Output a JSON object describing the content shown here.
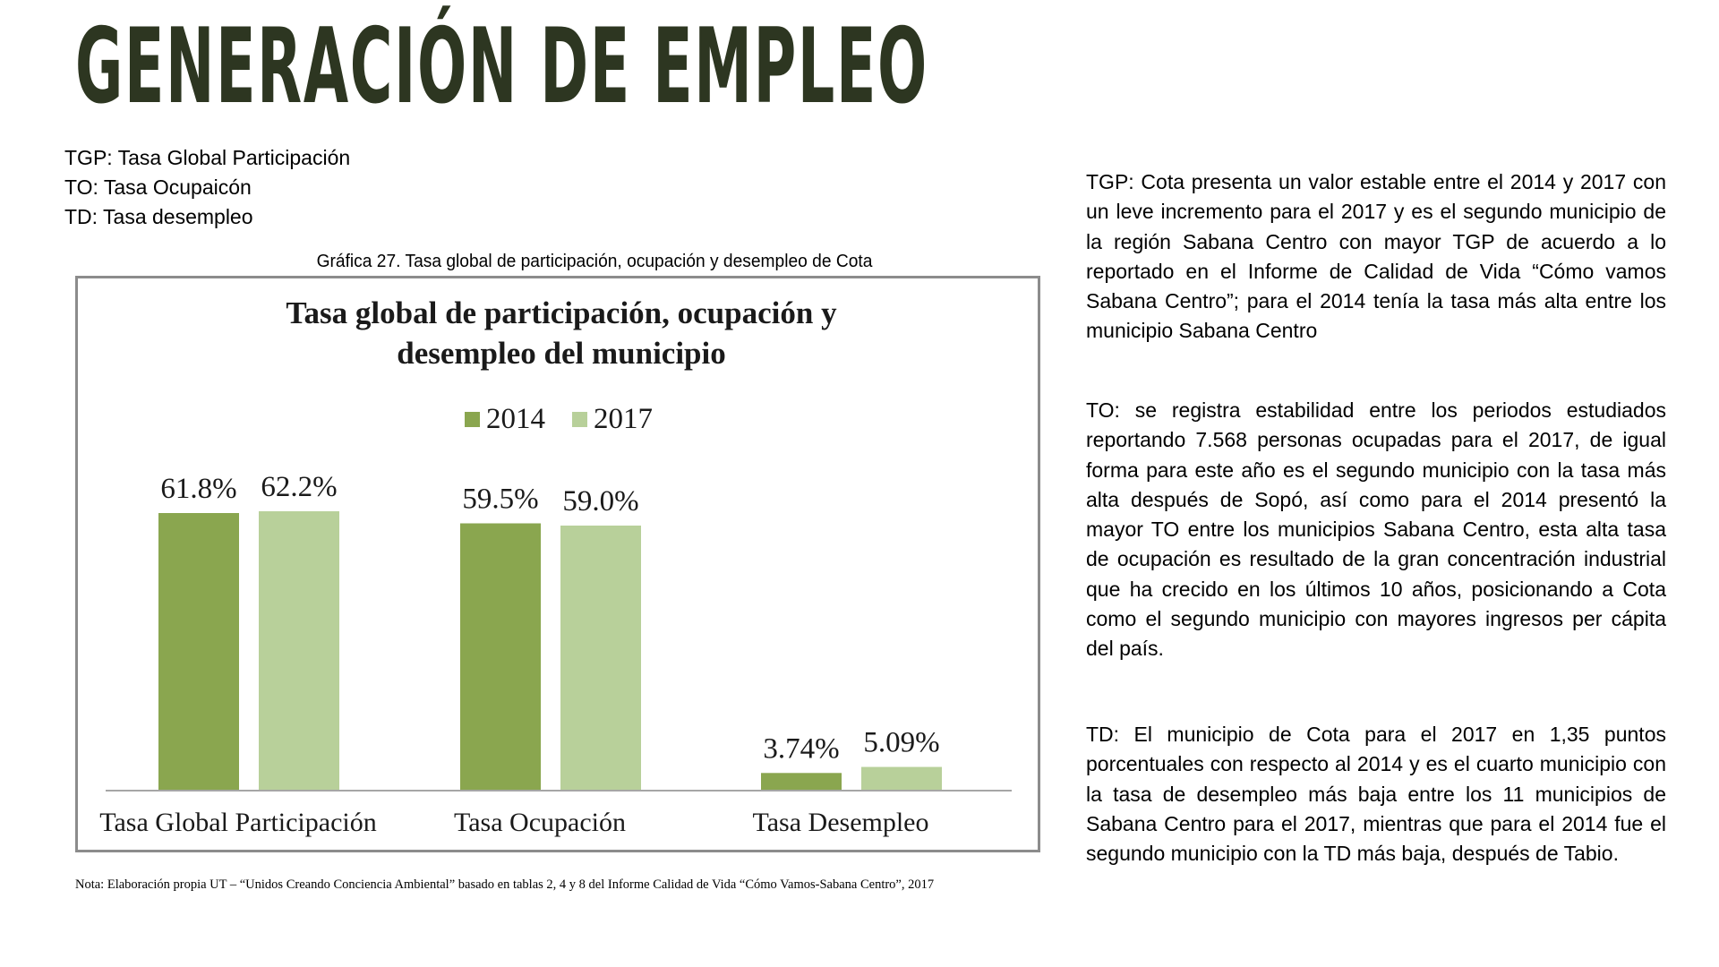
{
  "slide": {
    "title": "GENERACIÓN DE EMPLEO"
  },
  "definitions": [
    "TGP: Tasa Global Participación",
    "TO: Tasa Ocupaicón",
    "TD: Tasa desempleo"
  ],
  "figure": {
    "caption": "Gráfica 27. Tasa global de participación, ocupación y desempleo de Cota",
    "note": "Nota: Elaboración propia UT – “Unidos Creando Conciencia Ambiental” basado en tablas 2, 4 y 8 del Informe Calidad de Vida “Cómo Vamos-Sabana Centro”, 2017"
  },
  "chart_data": {
    "type": "bar",
    "title": "Tasa global de participación, ocupación y desempleo del municipio",
    "title_lines": [
      "Tasa global de participación, ocupación y",
      "desempleo del municipio"
    ],
    "categories": [
      "Tasa Global Participación",
      "Tasa Ocupación",
      "Tasa Desempleo"
    ],
    "series": [
      {
        "name": "2014",
        "color": "#8aa64f",
        "values": [
          61.8,
          59.5,
          3.74
        ],
        "labels": [
          "61.8%",
          "59.5%",
          "3.74%"
        ]
      },
      {
        "name": "2017",
        "color": "#b8d09a",
        "values": [
          62.2,
          59.0,
          5.09
        ],
        "labels": [
          "62.2%",
          "59.0%",
          "5.09%"
        ]
      }
    ],
    "ylim": [
      0,
      62.2
    ],
    "legend_position": "top-center",
    "grid": false,
    "xlabel": "",
    "ylabel": ""
  },
  "paragraphs": {
    "tgp": "TGP: Cota presenta un valor estable entre el 2014 y 2017 con un leve incremento para el 2017 y es el segundo municipio de la región Sabana Centro con mayor TGP de acuerdo a lo reportado en el Informe de Calidad de Vida “Cómo vamos Sabana Centro”; para el 2014 tenía la tasa más alta entre los municipio Sabana Centro",
    "to": "TO: se registra estabilidad entre los periodos estudiados reportando 7.568 personas ocupadas para el 2017, de igual forma para este año es el segundo municipio con la tasa más alta después de Sopó, así como para el 2014 presentó la mayor TO entre los municipios Sabana Centro, esta alta tasa de ocupación es resultado de la gran concentración industrial que ha crecido en los últimos 10 años, posicionando a Cota como el segundo municipio con mayores ingresos per cápita del país.",
    "td": "TD: El municipio de Cota para el 2017 en 1,35 puntos porcentuales con respecto al 2014 y es el cuarto municipio con la tasa de desempleo más baja entre los 11 municipios de Sabana Centro para el 2017, mientras que para el 2014 fue el segundo municipio con la TD más baja, después de Tabio."
  }
}
